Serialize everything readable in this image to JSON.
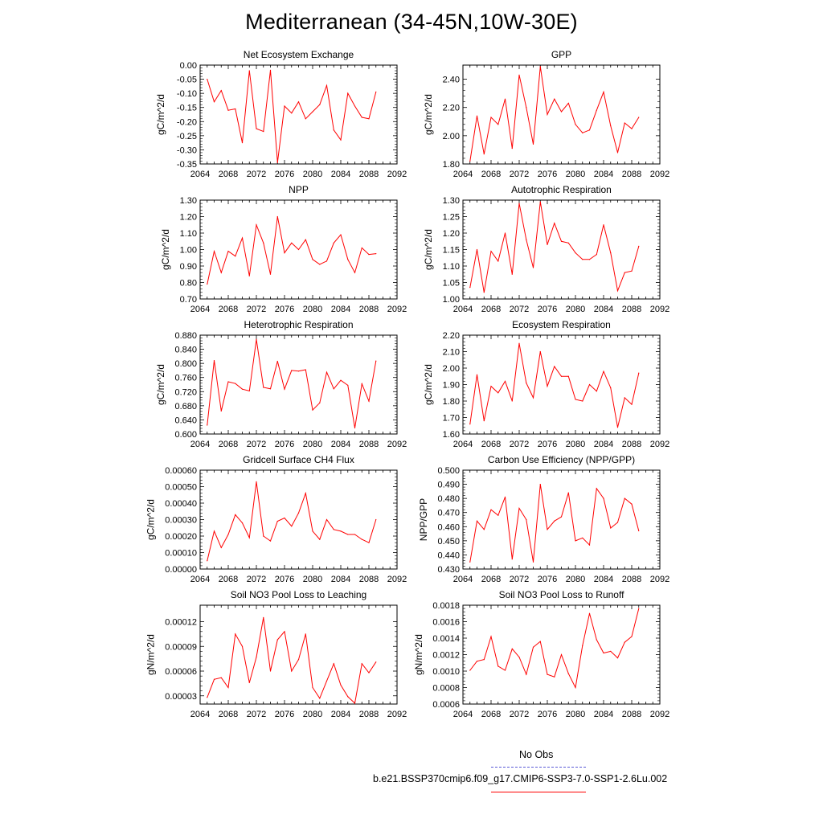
{
  "title": "Mediterranean (34-45N,10W-30E)",
  "legend": {
    "items": [
      {
        "label": "No Obs",
        "color": "#5a5ad6",
        "style": "dashed"
      },
      {
        "label": "b.e21.BSSP370cmip6.f09_g17.CMIP6-SSP3-7.0-SSP1-2.6Lu.002",
        "color": "#ff0000",
        "style": "solid"
      }
    ]
  },
  "chart_data": [
    {
      "type": "line",
      "title": "Net Ecosystem Exchange",
      "ylabel": "gC/m^2/d",
      "xlim": [
        2064,
        2092
      ],
      "xticks": [
        "2064",
        "2068",
        "2072",
        "2076",
        "2080",
        "2084",
        "2088",
        "2092"
      ],
      "ylim": [
        -0.35,
        0.0
      ],
      "yticks": [
        "-0.35",
        "-0.30",
        "-0.25",
        "-0.20",
        "-0.15",
        "-0.10",
        "-0.05",
        "0.00"
      ],
      "series": [
        {
          "color": "#ff0000",
          "x": [
            2065,
            2066,
            2067,
            2068,
            2069,
            2070,
            2071,
            2072,
            2073,
            2074,
            2075,
            2076,
            2077,
            2078,
            2079,
            2080,
            2081,
            2082,
            2083,
            2084,
            2085,
            2086,
            2087,
            2088,
            2089
          ],
          "values": [
            -0.05,
            -0.13,
            -0.09,
            -0.16,
            -0.155,
            -0.275,
            -0.02,
            -0.225,
            -0.235,
            -0.018,
            -0.345,
            -0.145,
            -0.17,
            -0.13,
            -0.19,
            -0.165,
            -0.14,
            -0.072,
            -0.23,
            -0.265,
            -0.1,
            -0.145,
            -0.185,
            -0.19,
            -0.095
          ]
        }
      ]
    },
    {
      "type": "line",
      "title": "GPP",
      "ylabel": "gC/m^2/d",
      "xlim": [
        2064,
        2092
      ],
      "xticks": [
        "2064",
        "2068",
        "2072",
        "2076",
        "2080",
        "2084",
        "2088",
        "2092"
      ],
      "ylim": [
        1.8,
        2.5
      ],
      "yticks": [
        "1.80",
        "2.00",
        "2.20",
        "2.40"
      ],
      "series": [
        {
          "color": "#ff0000",
          "x": [
            2065,
            2066,
            2067,
            2068,
            2069,
            2070,
            2071,
            2072,
            2073,
            2074,
            2075,
            2076,
            2077,
            2078,
            2079,
            2080,
            2081,
            2082,
            2083,
            2084,
            2085,
            2086,
            2087,
            2088,
            2089
          ],
          "values": [
            1.82,
            2.14,
            1.87,
            2.13,
            2.08,
            2.26,
            1.91,
            2.43,
            2.2,
            1.94,
            2.49,
            2.15,
            2.26,
            2.17,
            2.23,
            2.08,
            2.02,
            2.04,
            2.18,
            2.31,
            2.07,
            1.88,
            2.09,
            2.05,
            2.13
          ]
        }
      ]
    },
    {
      "type": "line",
      "title": "NPP",
      "ylabel": "gC/m^2/d",
      "xlim": [
        2064,
        2092
      ],
      "xticks": [
        "2064",
        "2068",
        "2072",
        "2076",
        "2080",
        "2084",
        "2088",
        "2092"
      ],
      "ylim": [
        0.7,
        1.3
      ],
      "yticks": [
        "0.70",
        "0.80",
        "0.90",
        "1.00",
        "1.10",
        "1.20",
        "1.30"
      ],
      "series": [
        {
          "color": "#ff0000",
          "x": [
            2065,
            2066,
            2067,
            2068,
            2069,
            2070,
            2071,
            2072,
            2073,
            2074,
            2075,
            2076,
            2077,
            2078,
            2079,
            2080,
            2081,
            2082,
            2083,
            2084,
            2085,
            2086,
            2087,
            2088,
            2089
          ],
          "values": [
            0.79,
            0.99,
            0.86,
            0.99,
            0.96,
            1.07,
            0.84,
            1.15,
            1.04,
            0.85,
            1.2,
            0.98,
            1.04,
            1.0,
            1.06,
            0.94,
            0.91,
            0.93,
            1.04,
            1.09,
            0.94,
            0.86,
            1.01,
            0.97,
            0.975
          ]
        }
      ]
    },
    {
      "type": "line",
      "title": "Autotrophic Respiration",
      "ylabel": "gC/m^2/d",
      "xlim": [
        2064,
        2092
      ],
      "xticks": [
        "2064",
        "2068",
        "2072",
        "2076",
        "2080",
        "2084",
        "2088",
        "2092"
      ],
      "ylim": [
        1.0,
        1.3
      ],
      "yticks": [
        "1.00",
        "1.05",
        "1.10",
        "1.15",
        "1.20",
        "1.25",
        "1.30"
      ],
      "series": [
        {
          "color": "#ff0000",
          "x": [
            2065,
            2066,
            2067,
            2068,
            2069,
            2070,
            2071,
            2072,
            2073,
            2074,
            2075,
            2076,
            2077,
            2078,
            2079,
            2080,
            2081,
            2082,
            2083,
            2084,
            2085,
            2086,
            2087,
            2088,
            2089
          ],
          "values": [
            1.035,
            1.15,
            1.02,
            1.145,
            1.115,
            1.2,
            1.075,
            1.29,
            1.18,
            1.095,
            1.295,
            1.165,
            1.23,
            1.175,
            1.17,
            1.14,
            1.12,
            1.12,
            1.135,
            1.225,
            1.14,
            1.025,
            1.08,
            1.085,
            1.16
          ]
        }
      ]
    },
    {
      "type": "line",
      "title": "Heterotrophic Respiration",
      "ylabel": "gC/m^2/d",
      "xlim": [
        2064,
        2092
      ],
      "xticks": [
        "2064",
        "2068",
        "2072",
        "2076",
        "2080",
        "2084",
        "2088",
        "2092"
      ],
      "ylim": [
        0.6,
        0.88
      ],
      "yticks": [
        "0.600",
        "0.640",
        "0.680",
        "0.720",
        "0.760",
        "0.800",
        "0.840",
        "0.880"
      ],
      "series": [
        {
          "color": "#ff0000",
          "x": [
            2065,
            2066,
            2067,
            2068,
            2069,
            2070,
            2071,
            2072,
            2073,
            2074,
            2075,
            2076,
            2077,
            2078,
            2079,
            2080,
            2081,
            2082,
            2083,
            2084,
            2085,
            2086,
            2087,
            2088,
            2089
          ],
          "values": [
            0.625,
            0.808,
            0.665,
            0.748,
            0.743,
            0.727,
            0.722,
            0.868,
            0.732,
            0.728,
            0.806,
            0.727,
            0.78,
            0.778,
            0.782,
            0.668,
            0.688,
            0.775,
            0.728,
            0.752,
            0.738,
            0.617,
            0.742,
            0.693,
            0.807
          ]
        }
      ]
    },
    {
      "type": "line",
      "title": "Ecosystem Respiration",
      "ylabel": "gC/m^2/d",
      "xlim": [
        2064,
        2092
      ],
      "xticks": [
        "2064",
        "2068",
        "2072",
        "2076",
        "2080",
        "2084",
        "2088",
        "2092"
      ],
      "ylim": [
        1.6,
        2.2
      ],
      "yticks": [
        "1.60",
        "1.70",
        "1.80",
        "1.90",
        "2.00",
        "2.10",
        "2.20"
      ],
      "series": [
        {
          "color": "#ff0000",
          "x": [
            2065,
            2066,
            2067,
            2068,
            2069,
            2070,
            2071,
            2072,
            2073,
            2074,
            2075,
            2076,
            2077,
            2078,
            2079,
            2080,
            2081,
            2082,
            2083,
            2084,
            2085,
            2086,
            2087,
            2088,
            2089
          ],
          "values": [
            1.66,
            1.96,
            1.68,
            1.89,
            1.85,
            1.92,
            1.8,
            2.15,
            1.91,
            1.82,
            2.1,
            1.89,
            2.01,
            1.95,
            1.95,
            1.81,
            1.8,
            1.9,
            1.86,
            1.98,
            1.88,
            1.64,
            1.82,
            1.78,
            1.97
          ]
        }
      ]
    },
    {
      "type": "line",
      "title": "Gridcell Surface CH4 Flux",
      "ylabel": "gC/m^2/d",
      "xlim": [
        2064,
        2092
      ],
      "xticks": [
        "2064",
        "2068",
        "2072",
        "2076",
        "2080",
        "2084",
        "2088",
        "2092"
      ],
      "ylim": [
        0.0,
        0.0006
      ],
      "yticks": [
        "0.00000",
        "0.00010",
        "0.00020",
        "0.00030",
        "0.00040",
        "0.00050",
        "0.00060"
      ],
      "series": [
        {
          "color": "#ff0000",
          "x": [
            2065,
            2066,
            2067,
            2068,
            2069,
            2070,
            2071,
            2072,
            2073,
            2074,
            2075,
            2076,
            2077,
            2078,
            2079,
            2080,
            2081,
            2082,
            2083,
            2084,
            2085,
            2086,
            2087,
            2088,
            2089
          ],
          "values": [
            5e-05,
            0.00023,
            0.00013,
            0.00021,
            0.00033,
            0.00028,
            0.00019,
            0.00053,
            0.0002,
            0.00017,
            0.00029,
            0.00031,
            0.00026,
            0.00034,
            0.00046,
            0.00023,
            0.00018,
            0.0003,
            0.00024,
            0.00023,
            0.00021,
            0.00021,
            0.00018,
            0.00016,
            0.0003
          ]
        }
      ]
    },
    {
      "type": "line",
      "title": "Carbon Use Efficiency (NPP/GPP)",
      "ylabel": "NPP/GPP",
      "xlim": [
        2064,
        2092
      ],
      "xticks": [
        "2064",
        "2068",
        "2072",
        "2076",
        "2080",
        "2084",
        "2088",
        "2092"
      ],
      "ylim": [
        0.43,
        0.5
      ],
      "yticks": [
        "0.430",
        "0.440",
        "0.450",
        "0.460",
        "0.470",
        "0.480",
        "0.490",
        "0.500"
      ],
      "series": [
        {
          "color": "#ff0000",
          "x": [
            2065,
            2066,
            2067,
            2068,
            2069,
            2070,
            2071,
            2072,
            2073,
            2074,
            2075,
            2076,
            2077,
            2078,
            2079,
            2080,
            2081,
            2082,
            2083,
            2084,
            2085,
            2086,
            2087,
            2088,
            2089
          ],
          "values": [
            0.435,
            0.464,
            0.458,
            0.472,
            0.468,
            0.481,
            0.437,
            0.473,
            0.465,
            0.435,
            0.49,
            0.458,
            0.464,
            0.467,
            0.484,
            0.45,
            0.452,
            0.447,
            0.487,
            0.48,
            0.459,
            0.463,
            0.48,
            0.476,
            0.457
          ]
        }
      ]
    },
    {
      "type": "line",
      "title": "Soil NO3 Pool Loss to Leaching",
      "ylabel": "gN/m^2/d",
      "xlim": [
        2064,
        2092
      ],
      "xticks": [
        "2064",
        "2068",
        "2072",
        "2076",
        "2080",
        "2084",
        "2088",
        "2092"
      ],
      "ylim": [
        2e-05,
        0.00014
      ],
      "yticks": [
        "0.00003",
        "0.00006",
        "0.00009",
        "0.00012"
      ],
      "series": [
        {
          "color": "#ff0000",
          "x": [
            2065,
            2066,
            2067,
            2068,
            2069,
            2070,
            2071,
            2072,
            2073,
            2074,
            2075,
            2076,
            2077,
            2078,
            2079,
            2080,
            2081,
            2082,
            2083,
            2084,
            2085,
            2086,
            2087,
            2088,
            2089
          ],
          "values": [
            2.8e-05,
            5e-05,
            5.2e-05,
            4e-05,
            0.000105,
            9e-05,
            4.6e-05,
            7.7e-05,
            0.000125,
            6e-05,
            9.8e-05,
            0.000108,
            6e-05,
            7.4e-05,
            0.000105,
            4e-05,
            2.7e-05,
            4.8e-05,
            6.9e-05,
            4.3e-05,
            2.9e-05,
            2.1e-05,
            6.9e-05,
            5.8e-05,
            7.1e-05
          ]
        }
      ]
    },
    {
      "type": "line",
      "title": "Soil NO3 Pool Loss to Runoff",
      "ylabel": "gN/m^2/d",
      "xlim": [
        2064,
        2092
      ],
      "xticks": [
        "2064",
        "2068",
        "2072",
        "2076",
        "2080",
        "2084",
        "2088",
        "2092"
      ],
      "ylim": [
        0.0006,
        0.0018
      ],
      "yticks": [
        "0.0006",
        "0.0008",
        "0.0010",
        "0.0012",
        "0.0014",
        "0.0016",
        "0.0018"
      ],
      "series": [
        {
          "color": "#ff0000",
          "x": [
            2065,
            2066,
            2067,
            2068,
            2069,
            2070,
            2071,
            2072,
            2073,
            2074,
            2075,
            2076,
            2077,
            2078,
            2079,
            2080,
            2081,
            2082,
            2083,
            2084,
            2085,
            2086,
            2087,
            2088,
            2089
          ],
          "values": [
            0.00101,
            0.00112,
            0.00114,
            0.00142,
            0.00106,
            0.00101,
            0.00127,
            0.00117,
            0.00096,
            0.00129,
            0.00136,
            0.00096,
            0.00093,
            0.0012,
            0.00097,
            0.0008,
            0.00131,
            0.0017,
            0.00138,
            0.00122,
            0.00124,
            0.00116,
            0.00135,
            0.00142,
            0.00176
          ]
        }
      ]
    }
  ]
}
